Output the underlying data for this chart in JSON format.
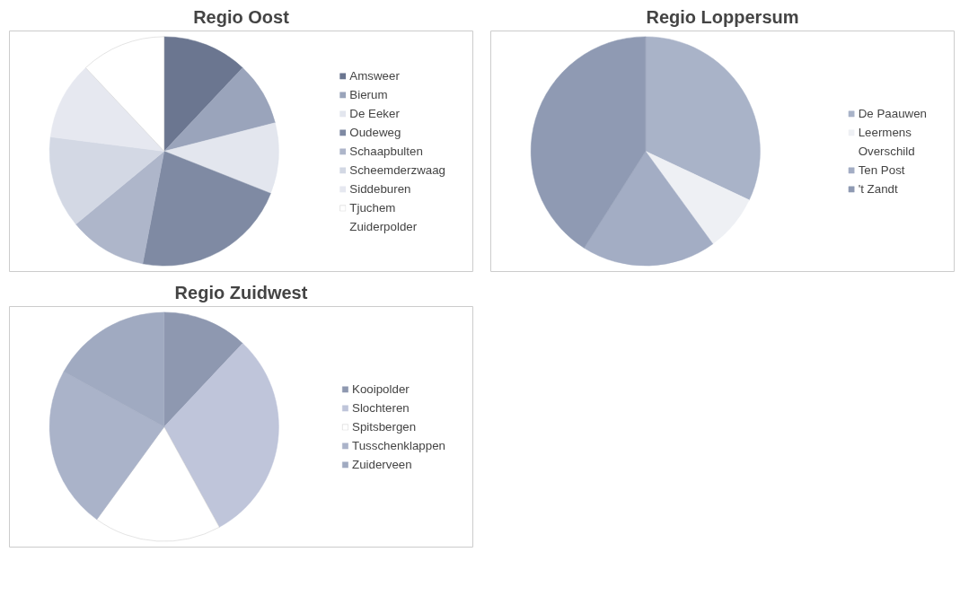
{
  "chart_data": [
    {
      "type": "pie",
      "title": "Regio Oost",
      "legend": "right",
      "categories": [
        "Amsweer",
        "Bierum",
        "De Eeker",
        "Oudeweg",
        "Schaapbulten",
        "Scheemderzwaag",
        "Siddeburen",
        "Tjuchem",
        "Zuiderpolder"
      ],
      "values": [
        12,
        9,
        10,
        22,
        11,
        13,
        11,
        12,
        0
      ],
      "colors": [
        "#6b7690",
        "#9aa4bb",
        "#e3e6ee",
        "#7f8aa3",
        "#aeb6ca",
        "#d3d8e4",
        "#e6e8f0",
        "#ffffff",
        "#ffffff"
      ]
    },
    {
      "type": "pie",
      "title": "Regio Loppersum",
      "legend": "right",
      "categories": [
        "De Paauwen",
        "Leermens",
        "Overschild",
        "Ten Post",
        "'t Zandt"
      ],
      "values": [
        32,
        8,
        0,
        19,
        41
      ],
      "colors": [
        "#a9b3c8",
        "#eef0f4",
        "#ffffff",
        "#a3adc4",
        "#8f9ab3"
      ]
    },
    {
      "type": "pie",
      "title": "Regio Zuidwest",
      "legend": "right",
      "categories": [
        "Kooipolder",
        "Slochteren",
        "Spitsbergen",
        "Tusschenklappen",
        "Zuiderveen"
      ],
      "values": [
        12,
        30,
        18,
        23,
        17
      ],
      "colors": [
        "#8e98b0",
        "#bfc5da",
        "#ffffff",
        "#aab3c9",
        "#a0aac1"
      ]
    }
  ]
}
